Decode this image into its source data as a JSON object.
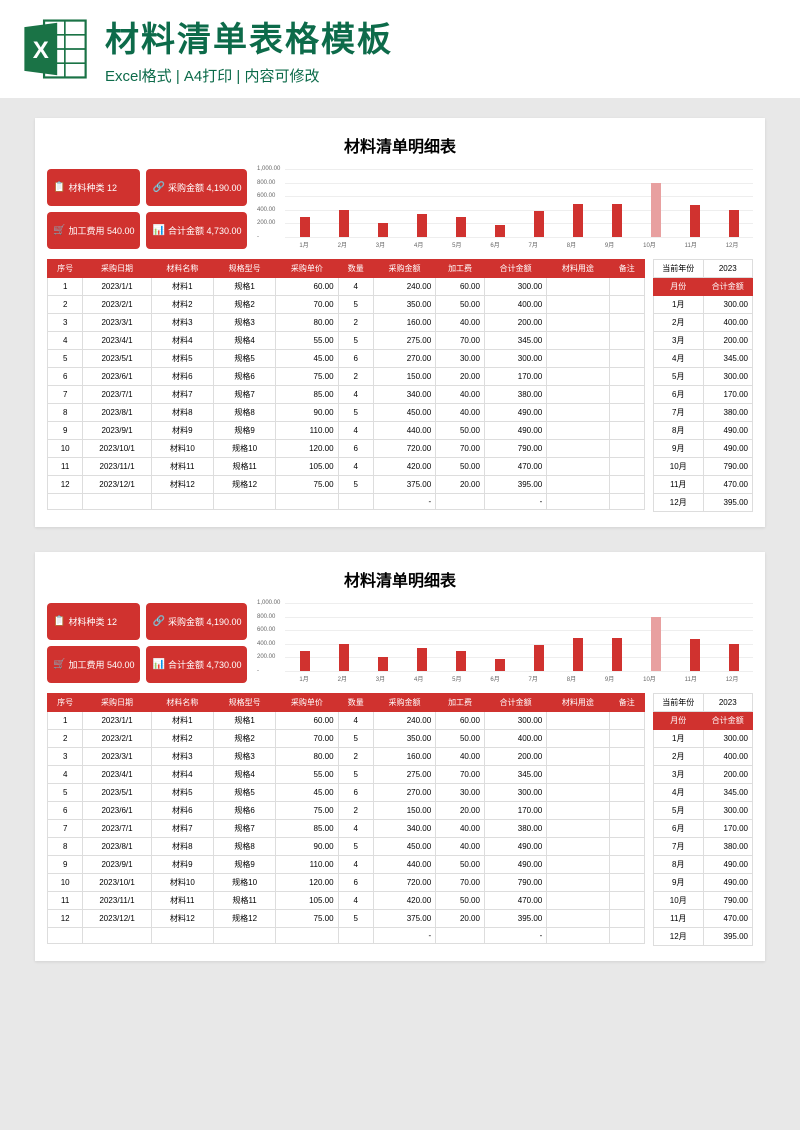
{
  "header": {
    "title": "材料清单表格模板",
    "subtitle": "Excel格式 | A4打印 | 内容可修改"
  },
  "sheet": {
    "title": "材料清单明细表",
    "badges": {
      "types_label": "材料种类",
      "types_value": "12",
      "purchase_label": "采购金额",
      "purchase_value": "4,190.00",
      "process_label": "加工费用",
      "process_value": "540.00",
      "total_label": "合计金额",
      "total_value": "4,730.00"
    },
    "chart": {
      "ylim_max": 1000,
      "yticks": [
        "1,000.00",
        "800.00",
        "600.00",
        "400.00",
        "200.00",
        "-"
      ],
      "categories": [
        "1月",
        "2月",
        "3月",
        "4月",
        "5月",
        "6月",
        "7月",
        "8月",
        "9月",
        "10月",
        "11月",
        "12月"
      ],
      "values": [
        300,
        400,
        200,
        345,
        300,
        170,
        380,
        490,
        490,
        790,
        470,
        395
      ],
      "bar_color": "#d0322f",
      "highlight_index": 9,
      "highlight_color": "#e8a0a0"
    },
    "main_columns": [
      "序号",
      "采购日期",
      "材料名称",
      "规格型号",
      "采购单价",
      "数量",
      "采购金额",
      "加工费",
      "合计金额",
      "材料用途",
      "备注"
    ],
    "main_rows": [
      [
        "1",
        "2023/1/1",
        "材料1",
        "规格1",
        "60.00",
        "4",
        "240.00",
        "60.00",
        "300.00",
        "",
        ""
      ],
      [
        "2",
        "2023/2/1",
        "材料2",
        "规格2",
        "70.00",
        "5",
        "350.00",
        "50.00",
        "400.00",
        "",
        ""
      ],
      [
        "3",
        "2023/3/1",
        "材料3",
        "规格3",
        "80.00",
        "2",
        "160.00",
        "40.00",
        "200.00",
        "",
        ""
      ],
      [
        "4",
        "2023/4/1",
        "材料4",
        "规格4",
        "55.00",
        "5",
        "275.00",
        "70.00",
        "345.00",
        "",
        ""
      ],
      [
        "5",
        "2023/5/1",
        "材料5",
        "规格5",
        "45.00",
        "6",
        "270.00",
        "30.00",
        "300.00",
        "",
        ""
      ],
      [
        "6",
        "2023/6/1",
        "材料6",
        "规格6",
        "75.00",
        "2",
        "150.00",
        "20.00",
        "170.00",
        "",
        ""
      ],
      [
        "7",
        "2023/7/1",
        "材料7",
        "规格7",
        "85.00",
        "4",
        "340.00",
        "40.00",
        "380.00",
        "",
        ""
      ],
      [
        "8",
        "2023/8/1",
        "材料8",
        "规格8",
        "90.00",
        "5",
        "450.00",
        "40.00",
        "490.00",
        "",
        ""
      ],
      [
        "9",
        "2023/9/1",
        "材料9",
        "规格9",
        "110.00",
        "4",
        "440.00",
        "50.00",
        "490.00",
        "",
        ""
      ],
      [
        "10",
        "2023/10/1",
        "材料10",
        "规格10",
        "120.00",
        "6",
        "720.00",
        "70.00",
        "790.00",
        "",
        ""
      ],
      [
        "11",
        "2023/11/1",
        "材料11",
        "规格11",
        "105.00",
        "4",
        "420.00",
        "50.00",
        "470.00",
        "",
        ""
      ],
      [
        "12",
        "2023/12/1",
        "材料12",
        "规格12",
        "75.00",
        "5",
        "375.00",
        "20.00",
        "395.00",
        "",
        ""
      ],
      [
        "",
        "",
        "",
        "",
        "",
        "",
        "-",
        "",
        "-",
        "",
        ""
      ]
    ],
    "side": {
      "year_label": "当前年份",
      "year_value": "2023",
      "columns": [
        "月份",
        "合计金额"
      ],
      "rows": [
        [
          "1月",
          "300.00"
        ],
        [
          "2月",
          "400.00"
        ],
        [
          "3月",
          "200.00"
        ],
        [
          "4月",
          "345.00"
        ],
        [
          "5月",
          "300.00"
        ],
        [
          "6月",
          "170.00"
        ],
        [
          "7月",
          "380.00"
        ],
        [
          "8月",
          "490.00"
        ],
        [
          "9月",
          "490.00"
        ],
        [
          "10月",
          "790.00"
        ],
        [
          "11月",
          "470.00"
        ],
        [
          "12月",
          "395.00"
        ]
      ]
    }
  }
}
